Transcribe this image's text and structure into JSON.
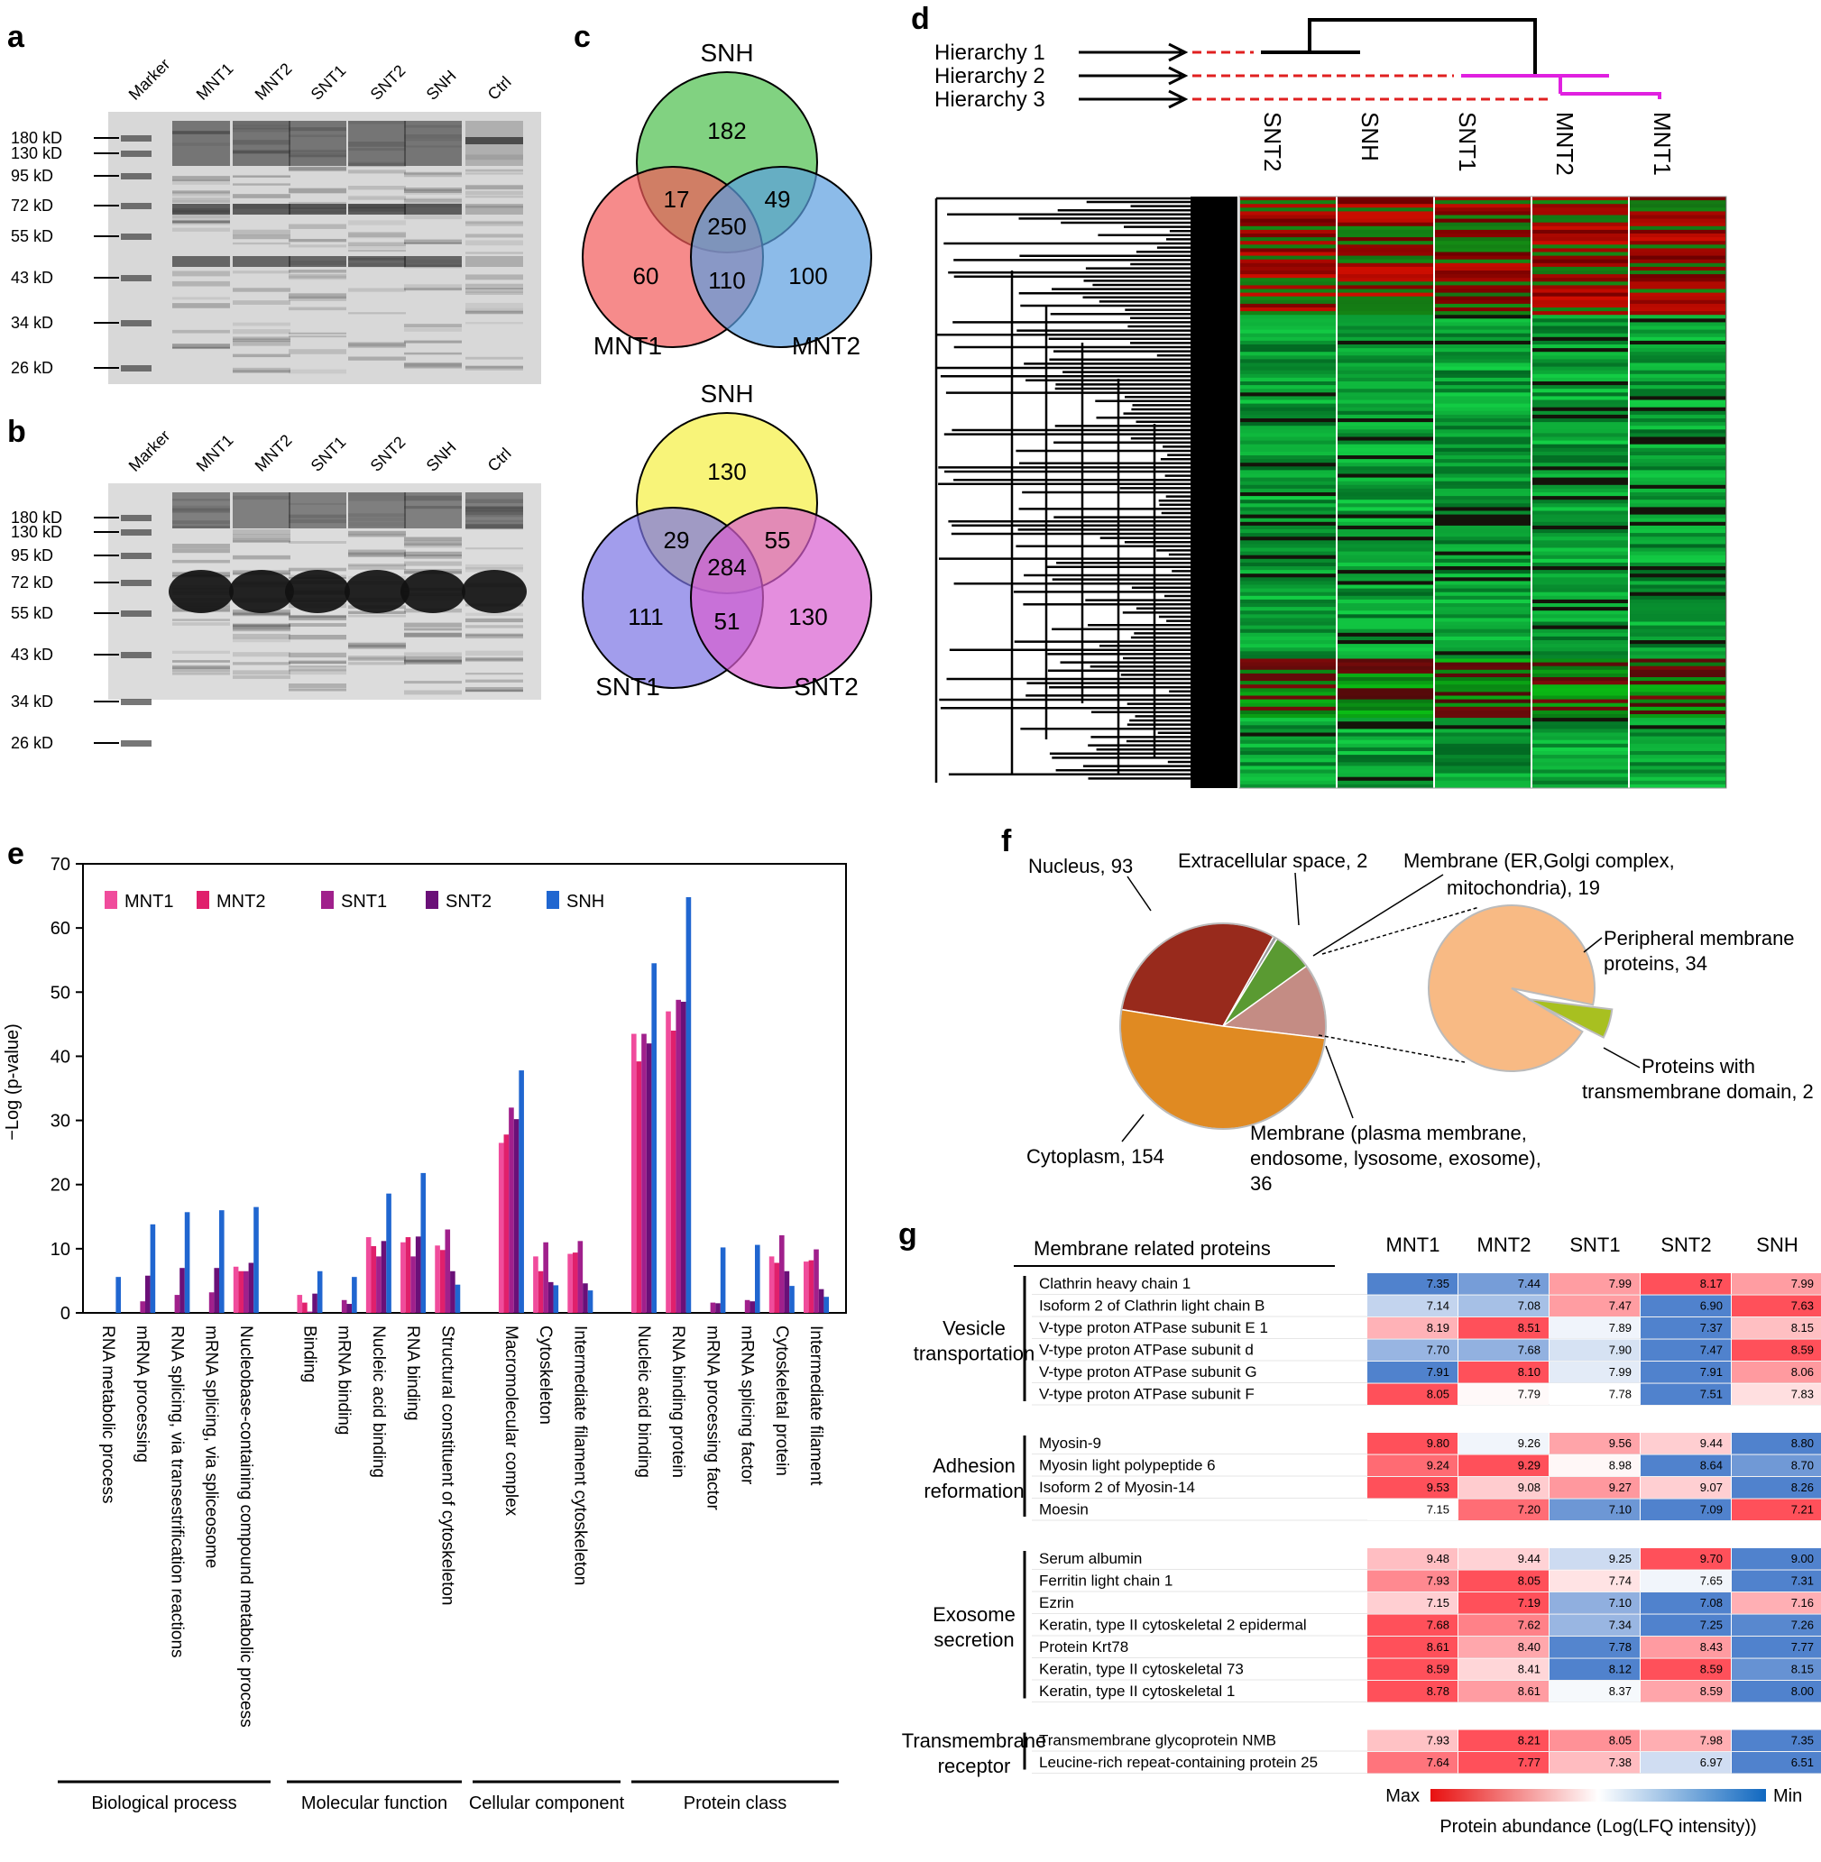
{
  "panels": {
    "a": "a",
    "b": "b",
    "c": "c",
    "d": "d",
    "e": "e",
    "f": "f",
    "g": "g"
  },
  "gels": {
    "lanes": [
      "Marker",
      "MNT1",
      "MNT2",
      "SNT1",
      "SNT2",
      "SNH",
      "Ctrl"
    ],
    "markers": [
      "180 kD",
      "130 kD",
      "95 kD",
      "72 kD",
      "55 kD",
      "43 kD",
      "34 kD",
      "26 kD"
    ]
  },
  "venn": [
    {
      "top": "SNH",
      "left": "MNT1",
      "right": "MNT2",
      "regions": {
        "top": "182",
        "left": "60",
        "right": "100",
        "top_left": "17",
        "top_right": "49",
        "left_right": "110",
        "center": "250"
      },
      "colors": {
        "top": "#4cbf4c",
        "left": "#f25a5a",
        "right": "#5b9ee0"
      }
    },
    {
      "top": "SNH",
      "left": "SNT1",
      "right": "SNT2",
      "regions": {
        "top": "130",
        "left": "111",
        "right": "130",
        "top_left": "29",
        "top_right": "55",
        "left_right": "51",
        "center": "284"
      },
      "colors": {
        "top": "#f5f040",
        "left": "#7a74e4",
        "right": "#d85ed0"
      }
    }
  ],
  "heatmap_d": {
    "hierarchies": [
      "Hierarchy 1",
      "Hierarchy 2",
      "Hierarchy 3"
    ],
    "columns": [
      "SNT2",
      "SNH",
      "SNT1",
      "MNT2",
      "MNT1"
    ]
  },
  "chart_data": {
    "type": "bar",
    "ylabel": "−Log (p-value)",
    "ylim": [
      0,
      70
    ],
    "yticks": [
      "0",
      "10",
      "20",
      "30",
      "40",
      "50",
      "60",
      "70"
    ],
    "series_names": [
      "MNT1",
      "MNT2",
      "SNT1",
      "SNT2",
      "SNH"
    ],
    "series_colors": [
      "#f04c9c",
      "#e0206c",
      "#a0208c",
      "#6a1078",
      "#2066d0"
    ],
    "categories": [
      {
        "label": "RNA metabolic process",
        "values": [
          0,
          0,
          0,
          0,
          5.6
        ]
      },
      {
        "label": "mRNA processing",
        "values": [
          0,
          0,
          1.8,
          5.8,
          13.8
        ]
      },
      {
        "label": "RNA splicing, via transestrification reactions",
        "values": [
          0,
          0,
          2.8,
          7,
          15.7
        ]
      },
      {
        "label": "mRNA splicing, via spliceosome",
        "values": [
          0,
          0,
          3.2,
          7,
          16
        ]
      },
      {
        "label": "Nucleobase-containing compound metabolic process",
        "values": [
          7.2,
          6.5,
          6.5,
          7.8,
          16.5
        ]
      },
      null,
      {
        "label": "Binding",
        "values": [
          2.8,
          1.6,
          0.2,
          3,
          6.5
        ]
      },
      {
        "label": "mRNA binding",
        "values": [
          0,
          0,
          2,
          1.4,
          5.6
        ]
      },
      {
        "label": "Nucleic acid binding",
        "values": [
          11.8,
          10.4,
          8.8,
          11.2,
          18.6
        ]
      },
      {
        "label": "RNA binding",
        "values": [
          11,
          11.8,
          8.8,
          11.9,
          21.8
        ]
      },
      {
        "label": "Structural constituent of cytoskeleton",
        "values": [
          10.5,
          9.8,
          13,
          6.5,
          4.4
        ]
      },
      null,
      {
        "label": "Macromolecular complex",
        "values": [
          26.5,
          27.8,
          32,
          30.2,
          37.8
        ]
      },
      {
        "label": "Cytoskeleton",
        "values": [
          8.8,
          6.5,
          11,
          4.8,
          4.3
        ]
      },
      {
        "label": "Intermediate filament cytoskeleton",
        "values": [
          9.2,
          9.4,
          11.2,
          4.6,
          3.5
        ]
      },
      null,
      {
        "label": "Nucleic acid binding",
        "values": [
          43.5,
          39.2,
          43.5,
          42,
          54.5
        ]
      },
      {
        "label": "RNA binding protein",
        "values": [
          47,
          44,
          48.8,
          48.5,
          64.8
        ]
      },
      {
        "label": "mRNA processing factor",
        "values": [
          0,
          0,
          1.6,
          1.5,
          10.2
        ]
      },
      {
        "label": "mRNA splicing factor",
        "values": [
          0,
          0,
          2,
          1.8,
          10.6
        ]
      },
      {
        "label": "Cytoskeletal protein",
        "values": [
          8.8,
          7.8,
          12.1,
          6.5,
          4.2
        ]
      },
      {
        "label": "Intermediate filament",
        "values": [
          8,
          8.2,
          9.9,
          3.7,
          2.5
        ]
      }
    ],
    "groups": [
      "Biological process",
      "Molecular function",
      "Cellular component",
      "Protein class"
    ]
  },
  "pie_f": {
    "slices": [
      {
        "label": "Nucleus, 93",
        "value": 93,
        "color": "#982a1c"
      },
      {
        "label": "Extracellular space, 2",
        "value": 2,
        "color": "#9a9a9a"
      },
      {
        "label": "Membrane (ER,Golgi complex,",
        "label2": "mitochondria), 19",
        "value": 19,
        "color": "#5a9a32"
      },
      {
        "label": "Membrane (plasma membrane,",
        "label2": "endosome, lysosome, exosome),",
        "label3": "36",
        "value": 36,
        "color": "#c48c84"
      },
      {
        "label": "Cytoplasm, 154",
        "value": 154,
        "color": "#e08a22"
      }
    ],
    "sub": [
      {
        "label": "Peripheral membrane",
        "label2": "proteins, 34",
        "value": 34,
        "color": "#f8ba84"
      },
      {
        "label": "Proteins with",
        "label2": "transmembrane domain, 2",
        "value": 2,
        "color": "#a8c020"
      }
    ]
  },
  "table_g": {
    "header": "Membrane related proteins",
    "columns": [
      "MNT1",
      "MNT2",
      "SNT1",
      "SNT2",
      "SNH"
    ],
    "groups": [
      {
        "name": [
          "Vesicle",
          "transportation"
        ],
        "rows": [
          {
            "name": "Clathrin heavy chain 1",
            "values": [
              "7.35",
              "7.44",
              "7.99",
              "8.17",
              "7.99"
            ]
          },
          {
            "name": "Isoform 2 of Clathrin light chain B",
            "values": [
              "7.14",
              "7.08",
              "7.47",
              "6.90",
              "7.63"
            ]
          },
          {
            "name": "V-type proton ATPase subunit E 1",
            "values": [
              "8.19",
              "8.51",
              "7.89",
              "7.37",
              "8.15"
            ]
          },
          {
            "name": "V-type proton ATPase subunit d",
            "values": [
              "7.70",
              "7.68",
              "7.90",
              "7.47",
              "8.59"
            ]
          },
          {
            "name": "V-type proton ATPase subunit G",
            "values": [
              "7.91",
              "8.10",
              "7.99",
              "7.91",
              "8.06"
            ]
          },
          {
            "name": "V-type proton ATPase subunit F",
            "values": [
              "8.05",
              "7.79",
              "7.78",
              "7.51",
              "7.83"
            ]
          }
        ]
      },
      {
        "name": [
          "Adhesion",
          "reformation"
        ],
        "rows": [
          {
            "name": "Myosin-9",
            "values": [
              "9.80",
              "9.26",
              "9.56",
              "9.44",
              "8.80"
            ]
          },
          {
            "name": "Myosin light polypeptide 6",
            "values": [
              "9.24",
              "9.29",
              "8.98",
              "8.64",
              "8.70"
            ]
          },
          {
            "name": "Isoform 2 of Myosin-14",
            "values": [
              "9.53",
              "9.08",
              "9.27",
              "9.07",
              "8.26"
            ]
          },
          {
            "name": "Moesin",
            "values": [
              "7.15",
              "7.20",
              "7.10",
              "7.09",
              "7.21"
            ]
          }
        ]
      },
      {
        "name": [
          "Exosome",
          "secretion"
        ],
        "rows": [
          {
            "name": "Serum albumin",
            "values": [
              "9.48",
              "9.44",
              "9.25",
              "9.70",
              "9.00"
            ]
          },
          {
            "name": "Ferritin light chain 1",
            "values": [
              "7.93",
              "8.05",
              "7.74",
              "7.65",
              "7.31"
            ]
          },
          {
            "name": "Ezrin",
            "values": [
              "7.15",
              "7.19",
              "7.10",
              "7.08",
              "7.16"
            ]
          },
          {
            "name": "Keratin, type II cytoskeletal 2 epidermal",
            "values": [
              "7.68",
              "7.62",
              "7.34",
              "7.25",
              "7.26"
            ]
          },
          {
            "name": "Protein Krt78",
            "values": [
              "8.61",
              "8.40",
              "7.78",
              "8.43",
              "7.77"
            ]
          },
          {
            "name": "Keratin, type II cytoskeletal 73",
            "values": [
              "8.59",
              "8.41",
              "8.12",
              "8.59",
              "8.15"
            ]
          },
          {
            "name": "Keratin, type II cytoskeletal 1",
            "values": [
              "8.78",
              "8.61",
              "8.37",
              "8.59",
              "8.00"
            ]
          }
        ]
      },
      {
        "name": [
          "Transmembrane",
          "receptor"
        ],
        "rows": [
          {
            "name": "Transmembrane glycoprotein NMB",
            "values": [
              "7.93",
              "8.21",
              "8.05",
              "7.98",
              "7.35"
            ]
          },
          {
            "name": "Leucine-rich repeat-containing protein 25",
            "values": [
              "7.64",
              "7.77",
              "7.38",
              "6.97",
              "6.51"
            ]
          }
        ]
      }
    ],
    "legend": {
      "max": "Max",
      "min": "Min",
      "title": "Protein abundance (Log(LFQ intensity))"
    }
  }
}
